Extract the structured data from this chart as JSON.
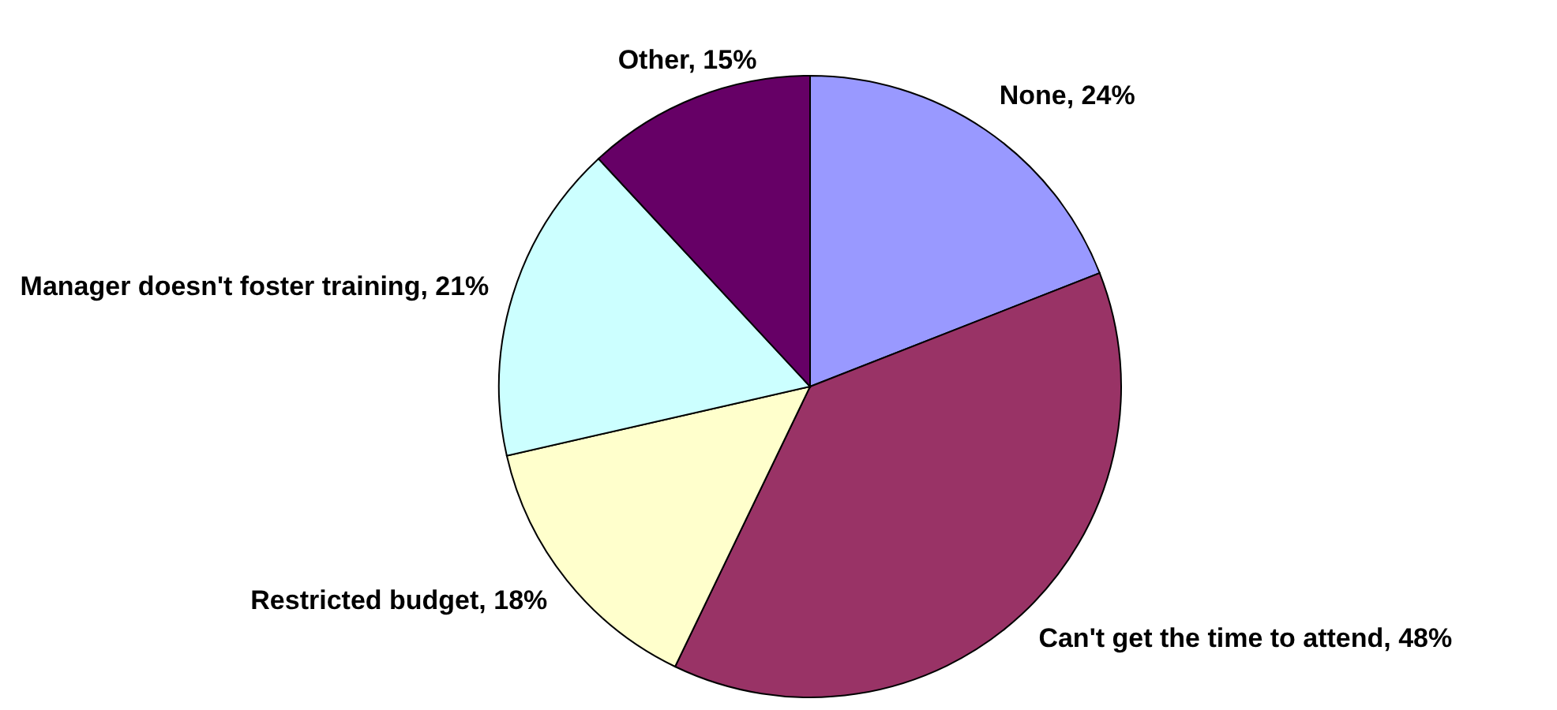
{
  "chart_data": {
    "type": "pie",
    "categories": [
      "None",
      "Can't get the time to attend",
      "Restricted budget",
      "Manager doesn't foster training",
      "Other"
    ],
    "values": [
      24,
      48,
      18,
      21,
      15
    ],
    "value_labels": [
      "24%",
      "48%",
      "18%",
      "21%",
      "15%"
    ],
    "colors": [
      "#9999ff",
      "#993366",
      "#ffffcc",
      "#ccffff",
      "#660066"
    ]
  }
}
